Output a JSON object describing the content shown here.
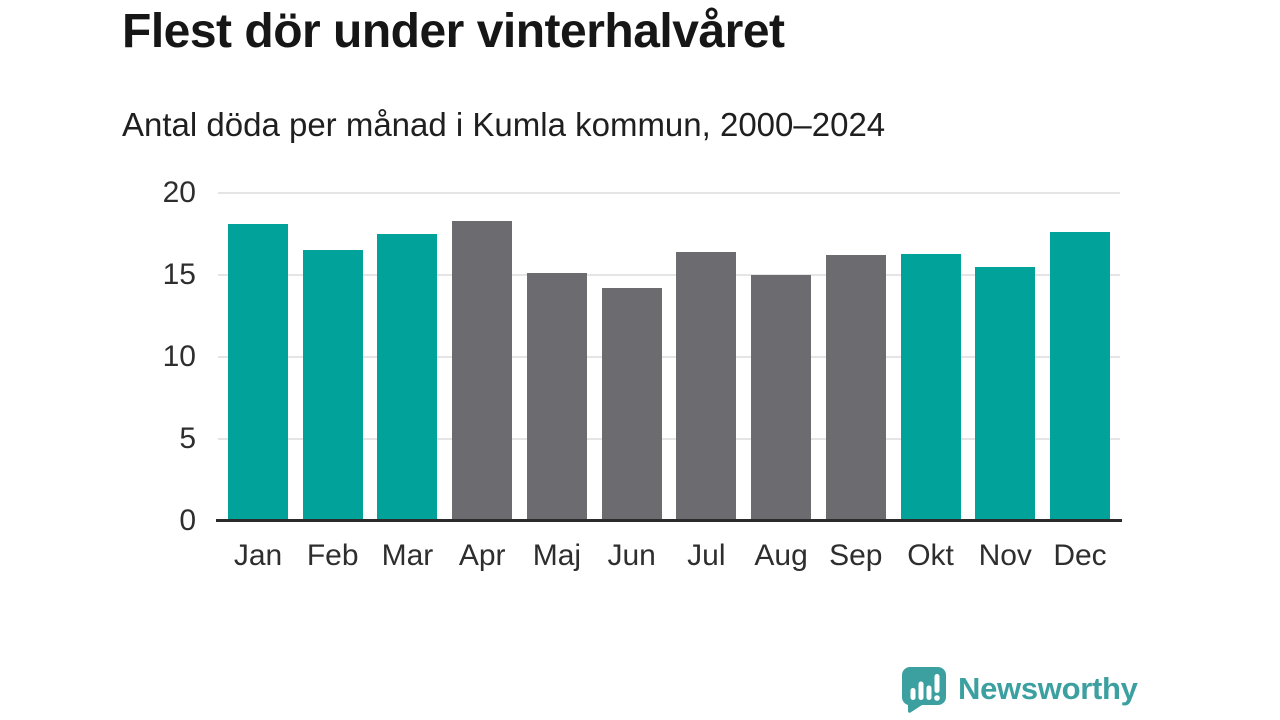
{
  "title": "Flest dör under vinterhalvåret",
  "subtitle": "Antal döda per månad i Kumla kommun, 2000–2024",
  "chart_data": {
    "type": "bar",
    "title": "Flest dör under vinterhalvåret",
    "subtitle": "Antal döda per månad i Kumla kommun, 2000–2024",
    "categories": [
      "Jan",
      "Feb",
      "Mar",
      "Apr",
      "Maj",
      "Jun",
      "Jul",
      "Aug",
      "Sep",
      "Okt",
      "Nov",
      "Dec"
    ],
    "values": [
      18.1,
      16.5,
      17.5,
      18.3,
      15.1,
      14.2,
      16.4,
      15.0,
      16.2,
      16.3,
      15.5,
      17.6
    ],
    "bar_groups": [
      "winter",
      "winter",
      "winter",
      "summer",
      "summer",
      "summer",
      "summer",
      "summer",
      "summer",
      "winter",
      "winter",
      "winter"
    ],
    "group_colors": {
      "winter": "#00A29A",
      "summer": "#6B6B70"
    },
    "xlabel": "",
    "ylabel": "",
    "ylim": [
      0,
      20
    ],
    "yticks": [
      0,
      5,
      10,
      15,
      20
    ],
    "grid": "horizontal-only",
    "legend": "none",
    "axis_colors": {
      "gridline": "#E5E5E5",
      "baseline": "#2B2B2B",
      "tick_text": "#2E2E2E"
    }
  },
  "branding": {
    "logo_text": "Newsworthy",
    "logo_icon": "bar-chart-speech-bubble-icon",
    "logo_color": "#3DA0A0"
  }
}
